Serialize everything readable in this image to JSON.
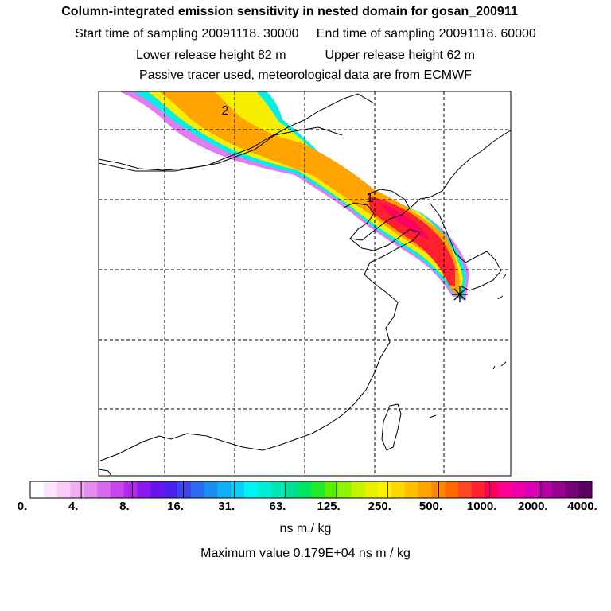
{
  "header": {
    "title": "Column-integrated emission sensitivity in nested domain for gosan_200911",
    "start_label": "Start time of sampling 20091118. 30000",
    "end_label": "End time of sampling 20091118. 60000",
    "lower_label": "Lower release height   82 m",
    "upper_label": "Upper release height   62 m",
    "info": "Passive tracer used, meteorological data are from ECMWF"
  },
  "map": {
    "markers": [
      {
        "label": "1"
      },
      {
        "label": "2"
      }
    ],
    "receptor_symbol": "star-marker"
  },
  "colorbar": {
    "labels": [
      "0.",
      "4.",
      "8.",
      "16.",
      "31.",
      "63.",
      "125.",
      "250.",
      "500.",
      "1000.",
      "2000.",
      "4000."
    ],
    "colors": [
      "#ffffff",
      "#fde6fb",
      "#f9ccf6",
      "#f2b0f2",
      "#e58cf0",
      "#d96af0",
      "#c744ee",
      "#b228ee",
      "#8a18ee",
      "#6a12ee",
      "#4a22f0",
      "#3a46f0",
      "#2a6af2",
      "#1a8ef4",
      "#10aef6",
      "#08cef8",
      "#00f4f4",
      "#00eed8",
      "#00e6b8",
      "#00de94",
      "#00e464",
      "#20ec2c",
      "#58f000",
      "#8ef400",
      "#c4f400",
      "#e8f000",
      "#fff000",
      "#ffd800",
      "#ffc000",
      "#ffa400",
      "#ff8800",
      "#ff6a00",
      "#ff4820",
      "#ff2030",
      "#ff0060",
      "#ff0090",
      "#ee00a8",
      "#d800b8",
      "#b800a4",
      "#980090",
      "#78007a",
      "#5a0060"
    ],
    "units": "ns m / kg",
    "max_label": "Maximum value  0.179E+04 ns m / kg"
  }
}
